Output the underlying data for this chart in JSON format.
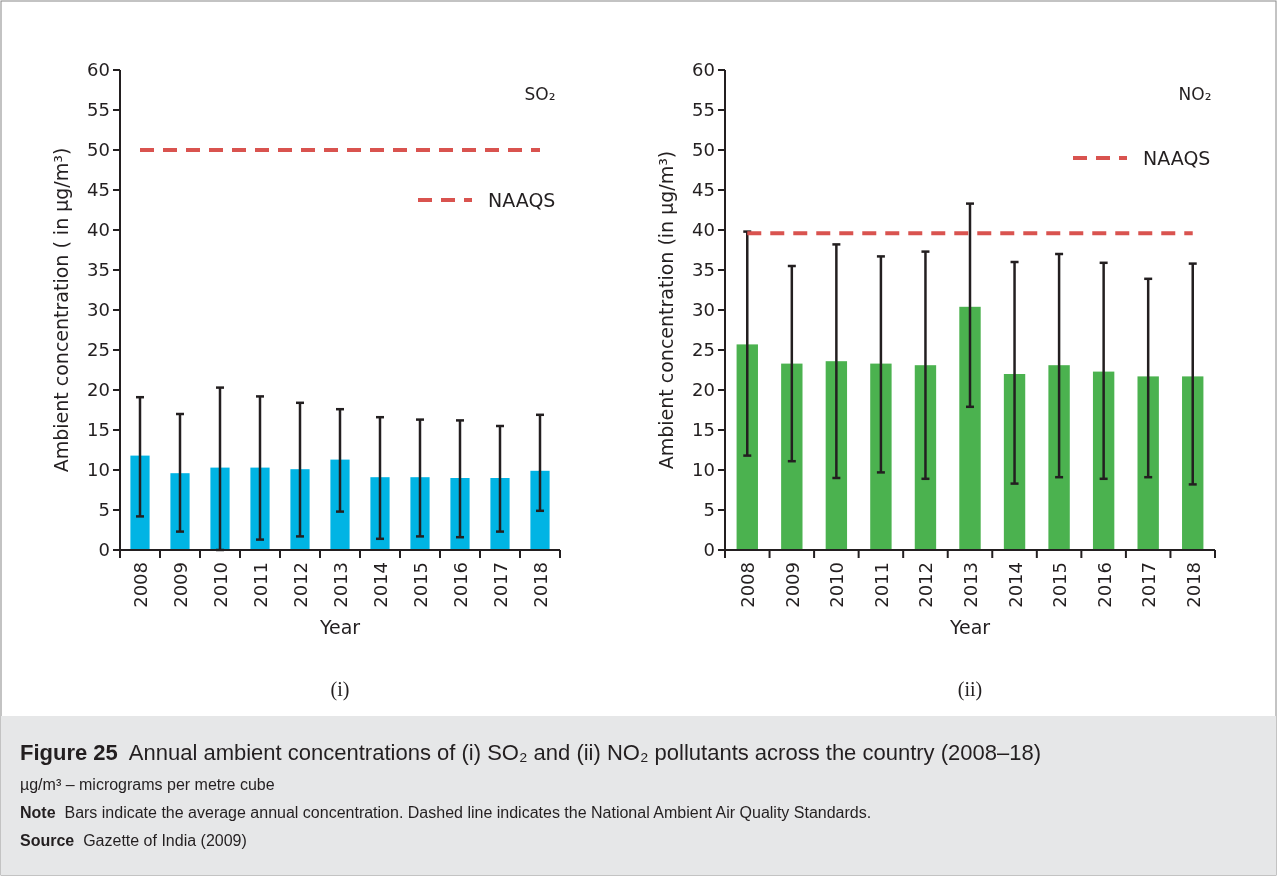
{
  "chart_data": [
    {
      "type": "bar",
      "subtitle": "(i)",
      "xlabel": "Year",
      "ylabel": "Ambient concentration ( in µg/m³)",
      "categories": [
        "2008",
        "2009",
        "2010",
        "2011",
        "2012",
        "2013",
        "2014",
        "2015",
        "2016",
        "2017",
        "2018"
      ],
      "title": "SO₂",
      "series": [
        {
          "color": "#00b4e4",
          "values": [
            11.8,
            9.6,
            10.3,
            10.3,
            10.1,
            11.3,
            9.1,
            9.1,
            9.0,
            9.0,
            9.9
          ],
          "errors": [
            [
              4.2,
              19.1
            ],
            [
              2.3,
              17.0
            ],
            [
              0,
              20.3
            ],
            [
              1.3,
              19.2
            ],
            [
              1.7,
              18.4
            ],
            [
              4.8,
              17.6
            ],
            [
              1.4,
              16.6
            ],
            [
              1.7,
              16.3
            ],
            [
              1.6,
              16.2
            ],
            [
              2.3,
              15.5
            ],
            [
              4.9,
              16.9
            ]
          ]
        }
      ],
      "ylim": [
        0,
        60
      ],
      "yticks": [
        0,
        5,
        10,
        15,
        20,
        25,
        30,
        35,
        40,
        45,
        50,
        55,
        60
      ],
      "ref_lines": [
        {
          "axis": "y",
          "value": 50,
          "label": "NAAQS",
          "color": "#d9534f",
          "line_style": "dashed"
        }
      ],
      "annotations": [
        "Figure 25  Annual ambient concentrations of (i) SO₂ and (ii) NO₂ pollutants across the country (2008–18)",
        "µg/m³ – micrograms per metre cube",
        "Note  Bars indicate the average annual concentration. Dashed line indicates the National Ambient Air Quality Standards.",
        "Source  Gazette of India (2009)"
      ]
    },
    {
      "type": "bar",
      "subtitle": "(ii)",
      "xlabel": "Year",
      "ylabel": "Ambient concentration (in µg/m³)",
      "categories": [
        "2008",
        "2009",
        "2010",
        "2011",
        "2012",
        "2013",
        "2014",
        "2015",
        "2016",
        "2017",
        "2018"
      ],
      "title": "NO₂",
      "series": [
        {
          "color": "#4bb24f",
          "values": [
            25.7,
            23.3,
            23.6,
            23.3,
            23.1,
            30.4,
            22.0,
            23.1,
            22.3,
            21.7,
            21.7
          ],
          "errors": [
            [
              11.8,
              39.8
            ],
            [
              11.1,
              35.5
            ],
            [
              9.0,
              38.2
            ],
            [
              9.7,
              36.7
            ],
            [
              8.9,
              37.3
            ],
            [
              17.9,
              43.3
            ],
            [
              8.3,
              36.0
            ],
            [
              9.1,
              37.0
            ],
            [
              8.9,
              35.9
            ],
            [
              9.1,
              33.9
            ],
            [
              8.2,
              35.8
            ]
          ]
        }
      ],
      "ylim": [
        0,
        60
      ],
      "yticks": [
        0,
        5,
        10,
        15,
        20,
        25,
        30,
        35,
        40,
        45,
        50,
        55,
        60
      ],
      "ref_lines": [
        {
          "axis": "y",
          "value": 39.6,
          "label": "NAAQS",
          "color": "#d9534f",
          "line_style": "dashed"
        }
      ]
    }
  ]
}
